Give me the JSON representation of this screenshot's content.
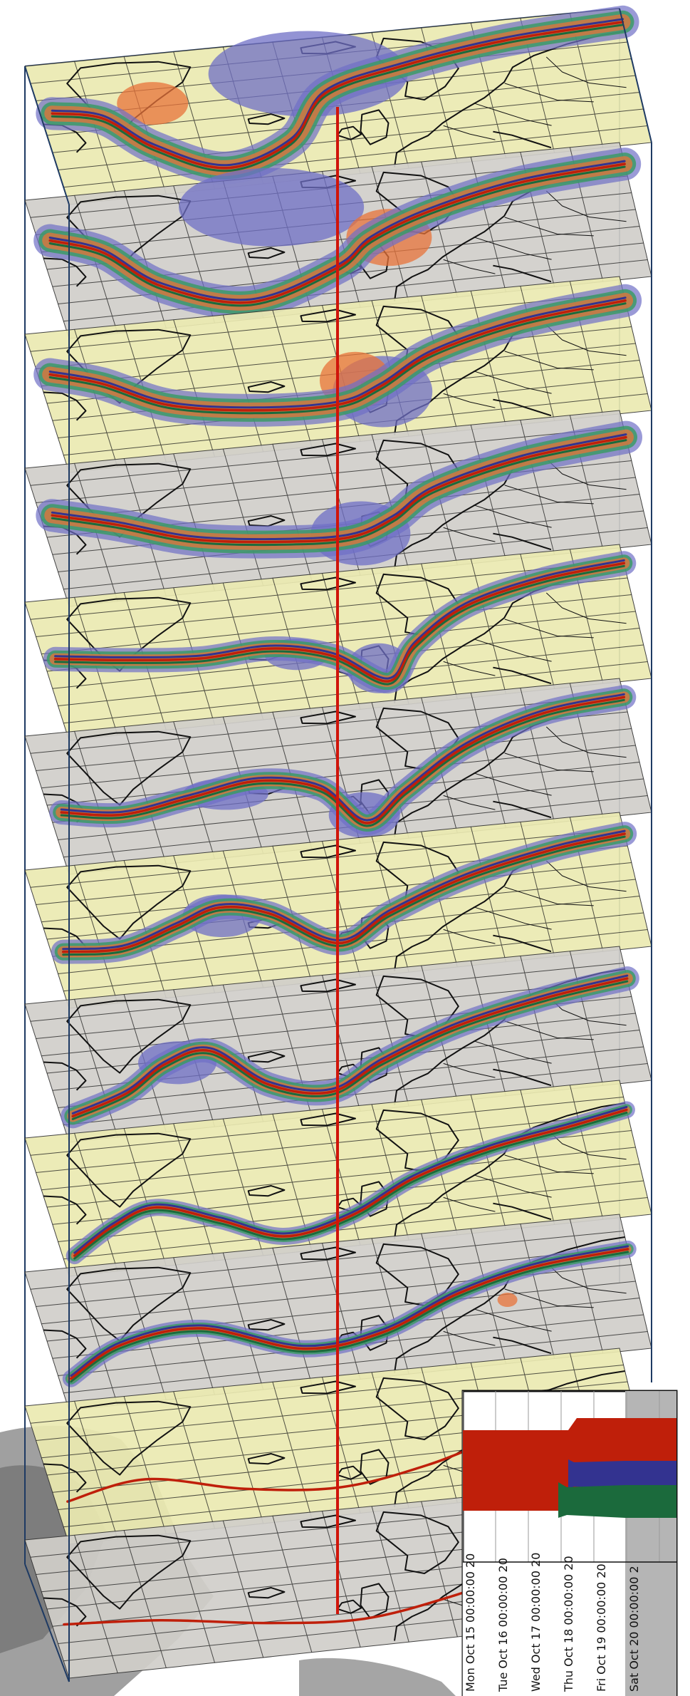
{
  "colors": {
    "background": "#ffffff",
    "slab_yellow": "#ebeab1",
    "slab_gray": "#d1cfca",
    "grid": "#1a1a1a",
    "coast": "#111111",
    "box": "#1e3a63",
    "red": "#bf1f0a",
    "green": "#1b6a3c",
    "blue": "#333390",
    "spread_blue": "#6f6fc6",
    "spread_green": "#3c9a66",
    "spread_orange": "#e8733a",
    "terrain": "#8f8f8f"
  },
  "slabs": [
    {
      "fill": "slab_yellow",
      "spread": "wide"
    },
    {
      "fill": "slab_gray",
      "spread": "wide"
    },
    {
      "fill": "slab_yellow",
      "spread": "wide"
    },
    {
      "fill": "slab_gray",
      "spread": "wide"
    },
    {
      "fill": "slab_yellow",
      "spread": "medium"
    },
    {
      "fill": "slab_gray",
      "spread": "medium"
    },
    {
      "fill": "slab_yellow",
      "spread": "medium"
    },
    {
      "fill": "slab_gray",
      "spread": "medium"
    },
    {
      "fill": "slab_yellow",
      "spread": "narrow"
    },
    {
      "fill": "slab_gray",
      "spread": "narrow"
    },
    {
      "fill": "slab_yellow",
      "spread": "none"
    },
    {
      "fill": "slab_gray",
      "spread": "none"
    }
  ],
  "timeline": {
    "dates": [
      "Mon Oct 15 00:00:00 20",
      "Tue Oct 16 00:00:00 20",
      "Wed Oct 17 00:00:00 20",
      "Thu Oct 18 00:00:00 20",
      "Fri Oct 19 00:00:00 20",
      "Sat Oct 20 00:00:00 2"
    ]
  }
}
